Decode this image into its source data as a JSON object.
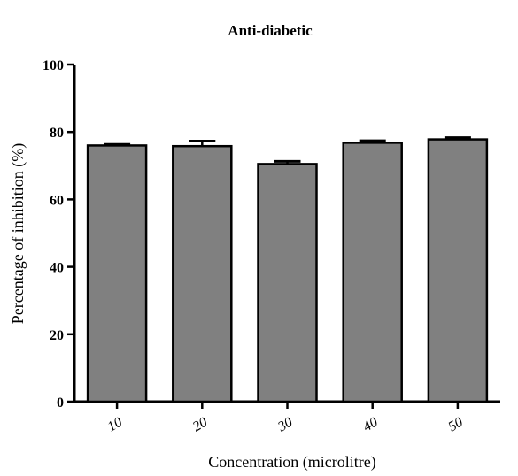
{
  "chart_data": {
    "type": "bar",
    "title": "Anti-diabetic",
    "xlabel": "Concentration (microlitre)",
    "ylabel": "Percentage of inhibition (%)",
    "categories": [
      "10",
      "20",
      "30",
      "40",
      "50"
    ],
    "values": [
      76.0,
      75.8,
      70.5,
      76.8,
      77.8
    ],
    "errors": [
      0.3,
      1.5,
      0.8,
      0.6,
      0.5
    ],
    "ylim": [
      0,
      100
    ],
    "yticks": [
      "0",
      "20",
      "40",
      "60",
      "80",
      "100"
    ],
    "grid": false,
    "bar_color": "#808080",
    "edge_color": "#000000"
  }
}
